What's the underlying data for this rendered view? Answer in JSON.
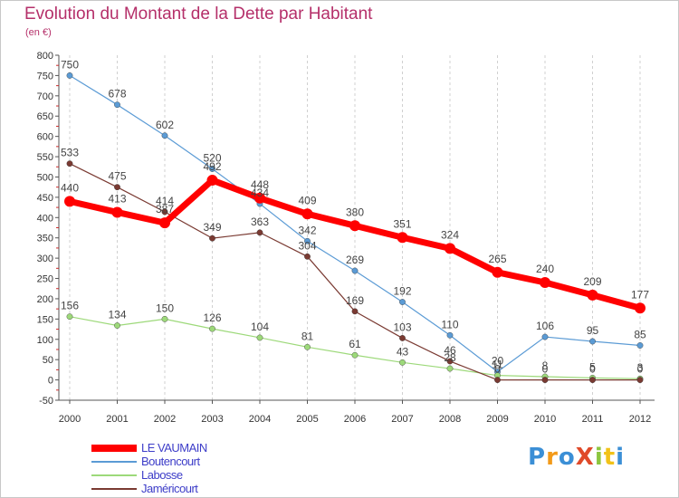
{
  "chart_data": {
    "type": "line",
    "title": "Evolution du Montant de la Dette par Habitant",
    "subtitle": "(en €)",
    "ylim": [
      -50,
      800
    ],
    "y_ticks": [
      800,
      750,
      700,
      650,
      600,
      550,
      500,
      450,
      400,
      350,
      300,
      250,
      200,
      150,
      100,
      50,
      0,
      -50
    ],
    "x": [
      "2000",
      "2001",
      "2002",
      "2003",
      "2004",
      "2005",
      "2006",
      "2007",
      "2008",
      "2009",
      "2010",
      "2011",
      "2012"
    ],
    "grid": "vertical dashed",
    "legend_position": "bottom-left",
    "series": [
      {
        "name": "LE VAUMAIN",
        "color": "#ff0000",
        "values": [
          440,
          413,
          387,
          492,
          448,
          409,
          380,
          351,
          324,
          265,
          240,
          209,
          177
        ],
        "labels": [
          "440",
          "413",
          "387",
          "492",
          "448",
          "409",
          "380",
          "351",
          "324",
          "265",
          "240",
          "209",
          "177"
        ]
      },
      {
        "name": "Boutencourt",
        "color": "#5b9bd5",
        "values": [
          750,
          678,
          602,
          520,
          434,
          342,
          269,
          192,
          110,
          20,
          106,
          95,
          85
        ],
        "labels": [
          "750",
          "678",
          "602",
          "520",
          "434",
          "342",
          "269",
          "192",
          "110",
          "20",
          "106",
          "95",
          "85"
        ]
      },
      {
        "name": "Labosse",
        "color": "#9dd97a",
        "values": [
          156,
          134,
          150,
          126,
          104,
          81,
          61,
          43,
          28,
          11,
          8,
          5,
          3
        ],
        "labels": [
          "156",
          "134",
          "150",
          "126",
          "104",
          "81",
          "61",
          "43",
          "28",
          "11",
          "8",
          "5",
          "3"
        ]
      },
      {
        "name": "Jaméricourt",
        "color": "#7a3a32",
        "values": [
          533,
          475,
          414,
          349,
          363,
          304,
          169,
          103,
          46,
          0,
          0,
          0,
          0
        ],
        "labels": [
          "533",
          "475",
          "414",
          "349",
          "363",
          "304",
          "169",
          "103",
          "46",
          "0",
          "0",
          "0",
          "0"
        ]
      }
    ]
  },
  "logo": {
    "text": "ProXiti",
    "colors": [
      "#3b8fd6",
      "#f29a1a",
      "#3b8fd6",
      "#e04a2a",
      "#8cc63f",
      "#f2c218",
      "#3b8fd6"
    ]
  }
}
